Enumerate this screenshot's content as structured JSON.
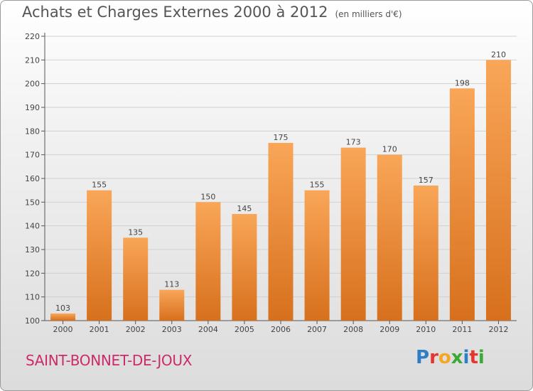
{
  "title": "Achats et Charges Externes 2000 à 2012",
  "subtitle": "(en milliers d'€)",
  "place": "SAINT-BONNET-DE-JOUX",
  "logo": {
    "text": "Proxiti",
    "letters": [
      "P",
      "r",
      "o",
      "x",
      "i",
      "t",
      "i"
    ],
    "colors": [
      "#2d7ec4",
      "#e5352c",
      "#f5a623",
      "#3aa935",
      "#2d7ec4",
      "#e5352c",
      "#3aa935"
    ]
  },
  "colors": {
    "bar_top": "#f9a658",
    "bar_bottom": "#d7701c",
    "place_text": "#cc2a6a",
    "grid": "#d0d0d0"
  },
  "chart_data": {
    "type": "bar",
    "categories": [
      "2000",
      "2001",
      "2002",
      "2003",
      "2004",
      "2005",
      "2006",
      "2007",
      "2008",
      "2009",
      "2010",
      "2011",
      "2012"
    ],
    "values": [
      103,
      155,
      135,
      113,
      150,
      145,
      175,
      155,
      173,
      170,
      157,
      198,
      210
    ],
    "ylim": [
      100,
      220
    ],
    "yticks": [
      100,
      110,
      120,
      130,
      140,
      150,
      160,
      170,
      180,
      190,
      200,
      210,
      220
    ],
    "grid": true,
    "data_labels": true
  }
}
